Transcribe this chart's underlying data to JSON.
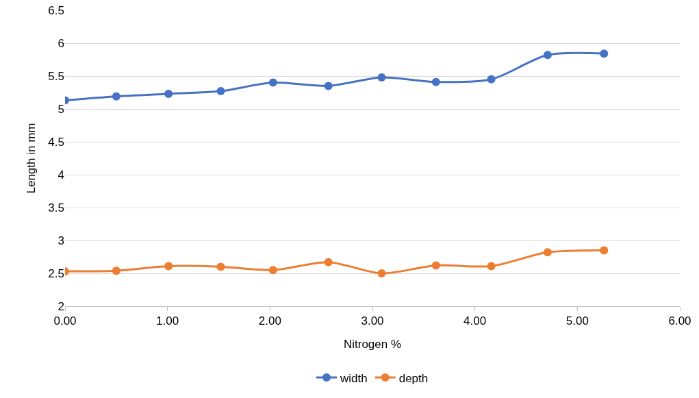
{
  "chart_data": {
    "type": "line",
    "xlabel": "Nitrogen %",
    "ylabel": "Length in mm",
    "x": [
      0,
      0.5,
      1.01,
      1.52,
      2.03,
      2.57,
      3.09,
      3.62,
      4.16,
      4.71,
      5.26
    ],
    "series": [
      {
        "name": "width",
        "color": "#4472c4",
        "values": [
          5.13,
          5.19,
          5.23,
          5.27,
          5.4,
          5.35,
          5.48,
          5.41,
          5.45,
          5.82,
          5.84
        ]
      },
      {
        "name": "depth",
        "color": "#ed7d31",
        "values": [
          2.53,
          2.54,
          2.61,
          2.6,
          2.55,
          2.67,
          2.5,
          2.62,
          2.61,
          2.82,
          2.85
        ]
      }
    ],
    "xlim": [
      0,
      6
    ],
    "xticks": [
      {
        "value": 0,
        "label": "0.00"
      },
      {
        "value": 1,
        "label": "1.00"
      },
      {
        "value": 2,
        "label": "2.00"
      },
      {
        "value": 3,
        "label": "3.00"
      },
      {
        "value": 4,
        "label": "4.00"
      },
      {
        "value": 5,
        "label": "5.00"
      },
      {
        "value": 6,
        "label": "6.00"
      }
    ],
    "ylim": [
      2,
      6.5
    ],
    "yticks": [
      2,
      2.5,
      3,
      3.5,
      4,
      4.5,
      5,
      5.5,
      6,
      6.5
    ],
    "grid": "y",
    "legend": "bottom",
    "marker": "circle",
    "line_style": "solid"
  }
}
